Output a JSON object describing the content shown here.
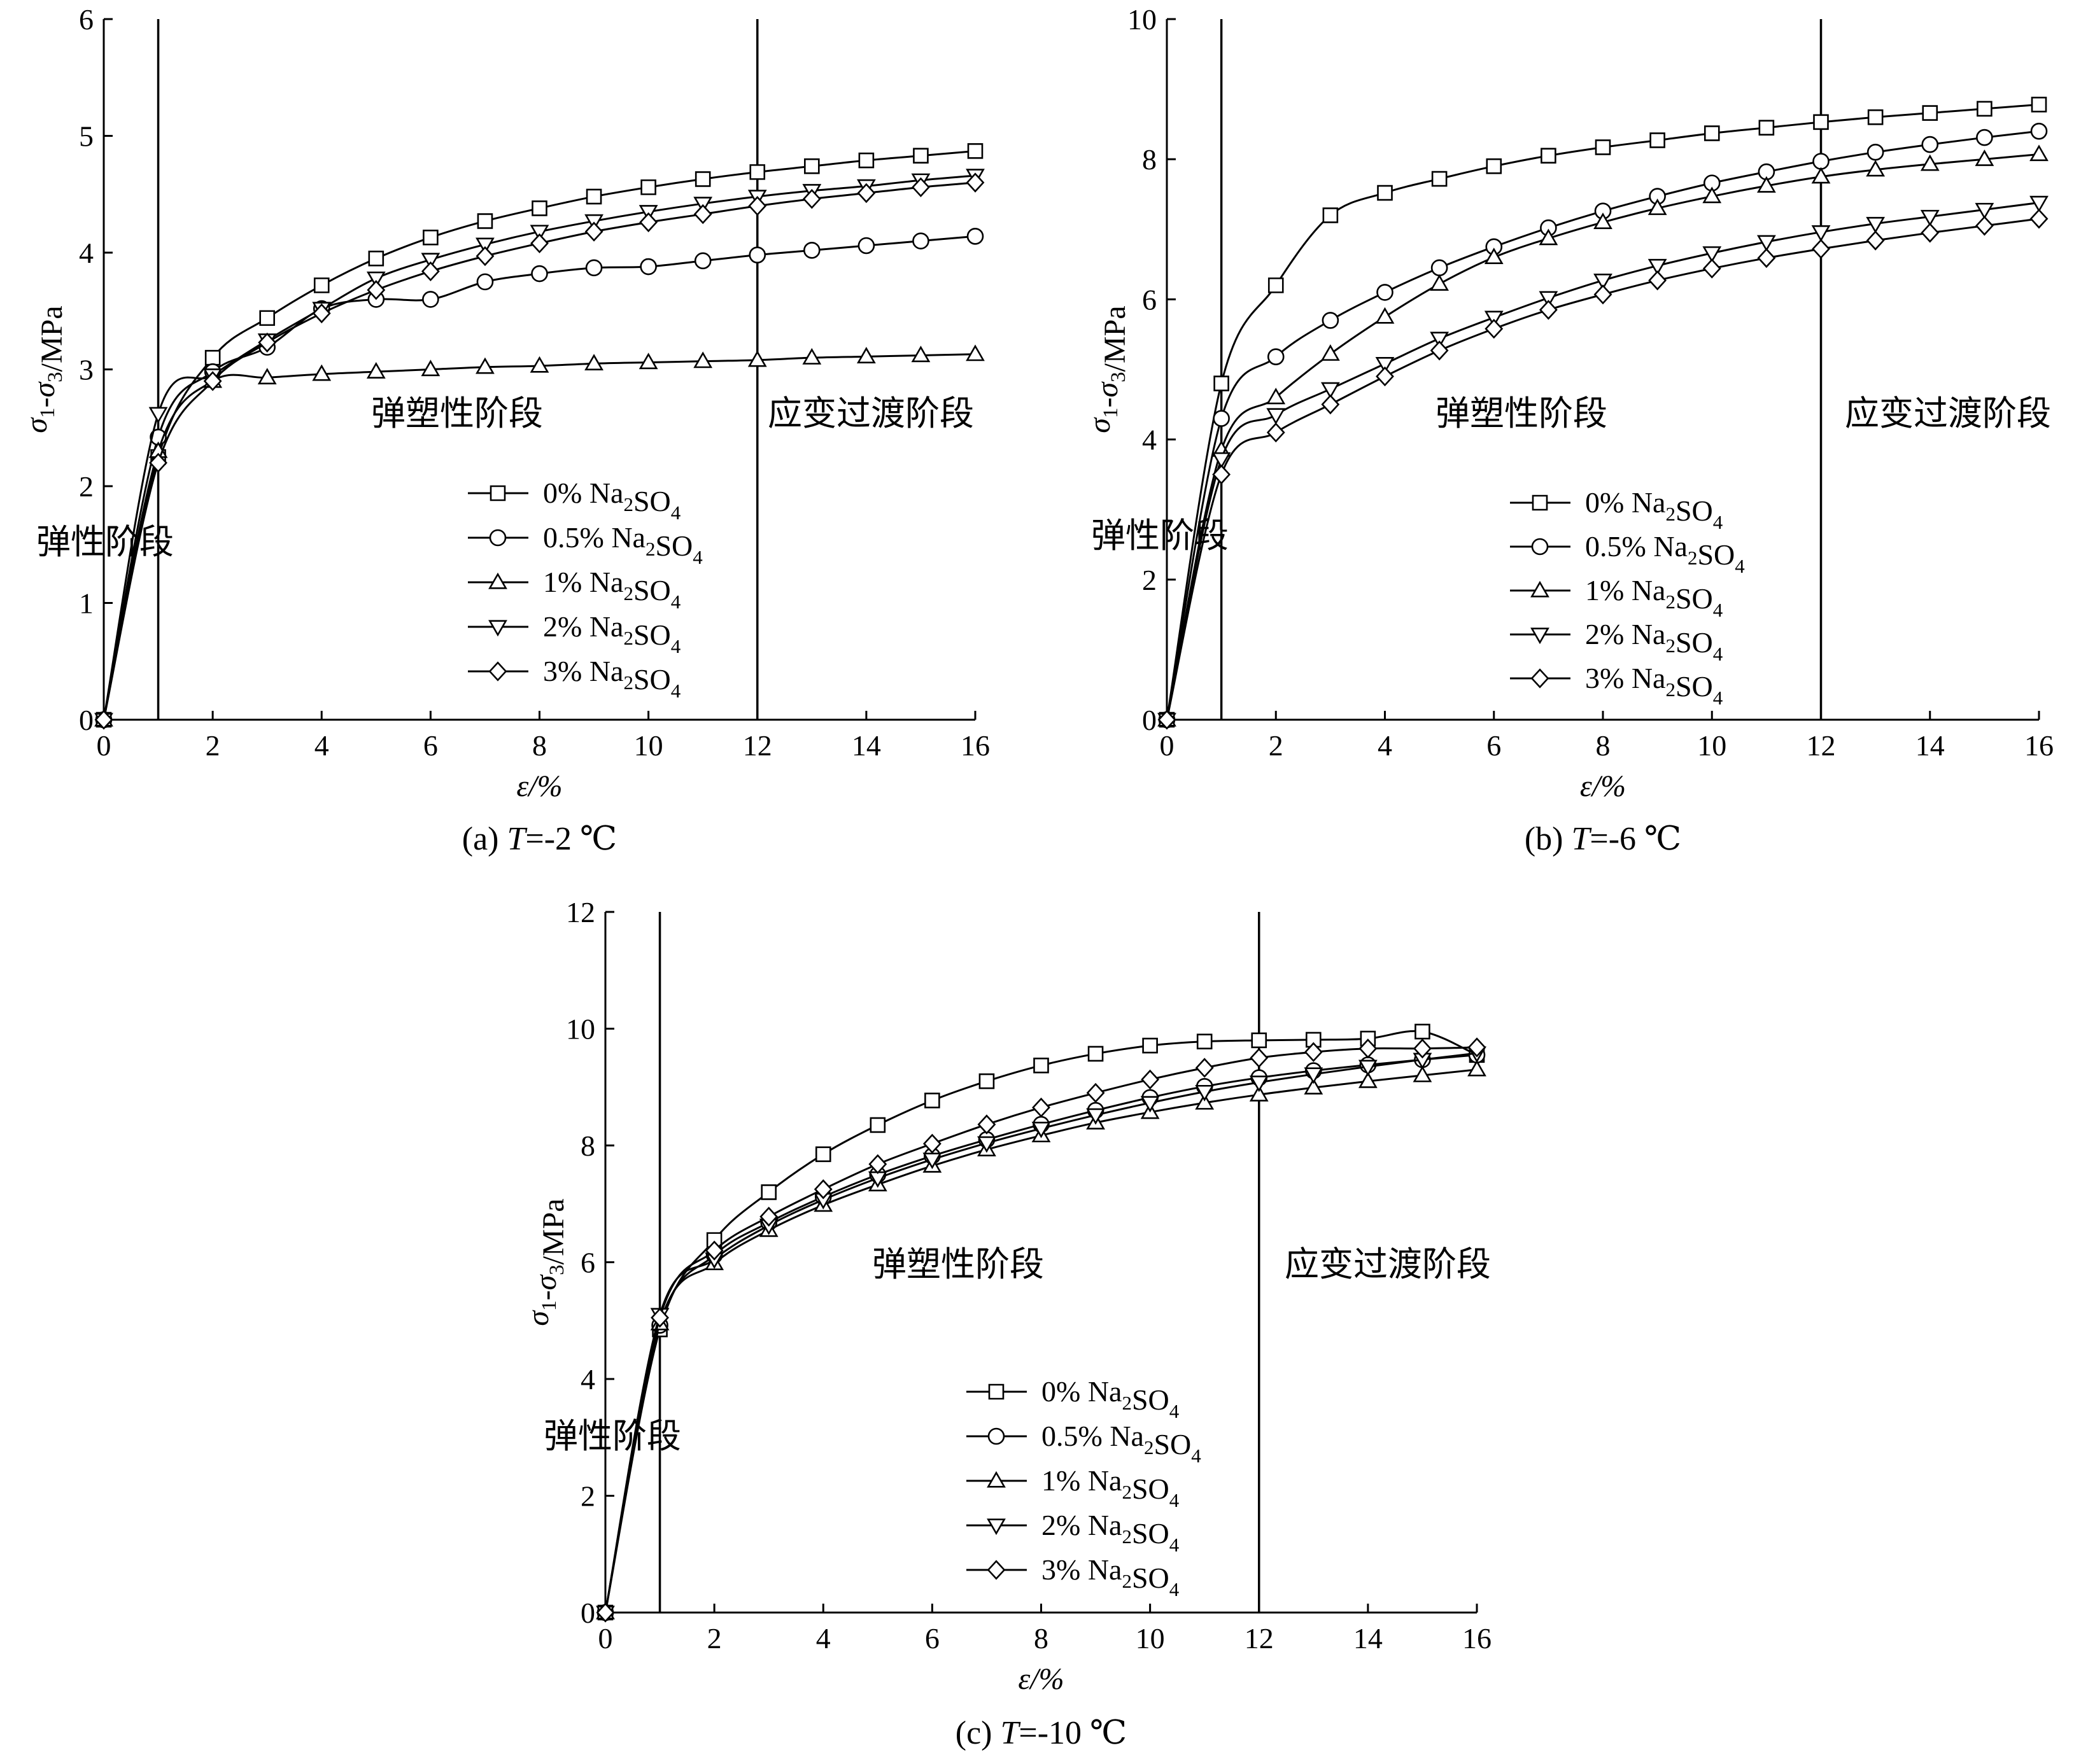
{
  "chart_data": [
    {
      "type": "line",
      "caption_prefix": "(a) ",
      "caption_var": "T",
      "caption_rest": "=-2 ℃",
      "xlabel": "ε/%",
      "ylabel": "σ1-σ3/MPa",
      "xlim": [
        0,
        16
      ],
      "ylim": [
        0,
        6
      ],
      "xticks": [
        0,
        2,
        4,
        6,
        8,
        10,
        12,
        14,
        16
      ],
      "yticks": [
        0,
        1,
        2,
        3,
        4,
        5,
        6
      ],
      "stage_lines": [
        1,
        12
      ],
      "stage_labels": {
        "elastic": "弹性阶段",
        "elastoplastic": "弹塑性阶段",
        "transition": "应变过渡阶段"
      },
      "legend_position": "center-right",
      "series": [
        {
          "name": "0% Na2SO4",
          "marker": "square",
          "x": [
            0,
            1,
            2,
            3,
            4,
            5,
            6,
            7,
            8,
            9,
            10,
            11,
            12,
            13,
            14,
            15,
            16
          ],
          "y": [
            0,
            2.25,
            3.1,
            3.44,
            3.72,
            3.95,
            4.13,
            4.27,
            4.38,
            4.48,
            4.56,
            4.63,
            4.69,
            4.74,
            4.79,
            4.83,
            4.87
          ]
        },
        {
          "name": "0.5% Na2SO4",
          "marker": "circle",
          "x": [
            0,
            1,
            2,
            3,
            4,
            5,
            6,
            7,
            8,
            9,
            10,
            11,
            12,
            13,
            14,
            15,
            16
          ],
          "y": [
            0,
            2.42,
            2.98,
            3.19,
            3.52,
            3.6,
            3.6,
            3.75,
            3.82,
            3.87,
            3.88,
            3.93,
            3.98,
            4.02,
            4.06,
            4.1,
            4.14
          ]
        },
        {
          "name": "1% Na2SO4",
          "marker": "triangle-up",
          "x": [
            0,
            1,
            2,
            3,
            4,
            5,
            6,
            7,
            8,
            9,
            10,
            11,
            12,
            13,
            14,
            15,
            16
          ],
          "y": [
            0,
            2.3,
            2.9,
            2.93,
            2.96,
            2.98,
            3.0,
            3.02,
            3.03,
            3.05,
            3.06,
            3.07,
            3.08,
            3.1,
            3.11,
            3.12,
            3.13
          ]
        },
        {
          "name": "2% Na2SO4",
          "marker": "triangle-down",
          "x": [
            0,
            1,
            2,
            3,
            4,
            5,
            6,
            7,
            8,
            9,
            10,
            11,
            12,
            13,
            14,
            15,
            16
          ],
          "y": [
            0,
            2.62,
            2.95,
            3.25,
            3.52,
            3.78,
            3.94,
            4.07,
            4.18,
            4.27,
            4.35,
            4.42,
            4.48,
            4.53,
            4.57,
            4.62,
            4.66
          ]
        },
        {
          "name": "3% Na2SO4",
          "marker": "diamond",
          "x": [
            0,
            1,
            2,
            3,
            4,
            5,
            6,
            7,
            8,
            9,
            10,
            11,
            12,
            13,
            14,
            15,
            16
          ],
          "y": [
            0,
            2.2,
            2.9,
            3.23,
            3.48,
            3.68,
            3.84,
            3.97,
            4.08,
            4.18,
            4.26,
            4.33,
            4.4,
            4.46,
            4.51,
            4.56,
            4.6
          ]
        }
      ]
    },
    {
      "type": "line",
      "caption_prefix": "(b) ",
      "caption_var": "T",
      "caption_rest": "=-6 ℃",
      "xlabel": "ε/%",
      "ylabel": "σ1-σ3/MPa",
      "xlim": [
        0,
        16
      ],
      "ylim": [
        0,
        10
      ],
      "xticks": [
        0,
        2,
        4,
        6,
        8,
        10,
        12,
        14,
        16
      ],
      "yticks": [
        0,
        2,
        4,
        6,
        8,
        10
      ],
      "stage_lines": [
        1,
        12
      ],
      "stage_labels": {
        "elastic": "弹性阶段",
        "elastoplastic": "弹塑性阶段",
        "transition": "应变过渡阶段"
      },
      "legend_position": "center-right",
      "series": [
        {
          "name": "0% Na2SO4",
          "marker": "square",
          "x": [
            0,
            1,
            2,
            3,
            4,
            5,
            6,
            7,
            8,
            9,
            10,
            11,
            12,
            13,
            14,
            15,
            16
          ],
          "y": [
            0,
            4.8,
            6.2,
            7.2,
            7.52,
            7.72,
            7.9,
            8.05,
            8.17,
            8.27,
            8.37,
            8.45,
            8.53,
            8.6,
            8.66,
            8.72,
            8.78
          ]
        },
        {
          "name": "0.5% Na2SO4",
          "marker": "circle",
          "x": [
            0,
            1,
            2,
            3,
            4,
            5,
            6,
            7,
            8,
            9,
            10,
            11,
            12,
            13,
            14,
            15,
            16
          ],
          "y": [
            0,
            4.3,
            5.18,
            5.7,
            6.1,
            6.45,
            6.75,
            7.02,
            7.26,
            7.47,
            7.66,
            7.82,
            7.97,
            8.1,
            8.21,
            8.31,
            8.4
          ]
        },
        {
          "name": "1% Na2SO4",
          "marker": "triangle-up",
          "x": [
            0,
            1,
            2,
            3,
            4,
            5,
            6,
            7,
            8,
            9,
            10,
            11,
            12,
            13,
            14,
            15,
            16
          ],
          "y": [
            0,
            3.85,
            4.6,
            5.22,
            5.75,
            6.22,
            6.6,
            6.87,
            7.1,
            7.3,
            7.47,
            7.62,
            7.75,
            7.85,
            7.93,
            8.0,
            8.07
          ]
        },
        {
          "name": "2% Na2SO4",
          "marker": "triangle-down",
          "x": [
            0,
            1,
            2,
            3,
            4,
            5,
            6,
            7,
            8,
            9,
            10,
            11,
            12,
            13,
            14,
            15,
            16
          ],
          "y": [
            0,
            3.72,
            4.35,
            4.72,
            5.08,
            5.44,
            5.74,
            6.02,
            6.27,
            6.48,
            6.66,
            6.82,
            6.96,
            7.08,
            7.18,
            7.28,
            7.38
          ]
        },
        {
          "name": "3% Na2SO4",
          "marker": "diamond",
          "x": [
            0,
            1,
            2,
            3,
            4,
            5,
            6,
            7,
            8,
            9,
            10,
            11,
            12,
            13,
            14,
            15,
            16
          ],
          "y": [
            0,
            3.5,
            4.1,
            4.5,
            4.9,
            5.27,
            5.58,
            5.85,
            6.07,
            6.27,
            6.44,
            6.59,
            6.72,
            6.84,
            6.95,
            7.05,
            7.15
          ]
        }
      ]
    },
    {
      "type": "line",
      "caption_prefix": "(c) ",
      "caption_var": "T",
      "caption_rest": "=-10 ℃",
      "xlabel": "ε/%",
      "ylabel": "σ1-σ3/MPa",
      "xlim": [
        0,
        16
      ],
      "ylim": [
        0,
        12
      ],
      "xticks": [
        0,
        2,
        4,
        6,
        8,
        10,
        12,
        14,
        16
      ],
      "yticks": [
        0,
        2,
        4,
        6,
        8,
        10,
        12
      ],
      "stage_lines": [
        1,
        12
      ],
      "stage_labels": {
        "elastic": "弹性阶段",
        "elastoplastic": "弹塑性阶段",
        "transition": "应变过渡阶段"
      },
      "legend_position": "bottom-center",
      "series": [
        {
          "name": "0% Na2SO4",
          "marker": "square",
          "x": [
            0,
            1,
            2,
            3,
            4,
            5,
            6,
            7,
            8,
            9,
            10,
            11,
            12,
            13,
            14,
            15,
            16
          ],
          "y": [
            0,
            4.85,
            6.38,
            7.2,
            7.85,
            8.35,
            8.77,
            9.1,
            9.37,
            9.57,
            9.71,
            9.78,
            9.8,
            9.81,
            9.83,
            9.95,
            9.55
          ]
        },
        {
          "name": "0.5% Na2SO4",
          "marker": "circle",
          "x": [
            0,
            1,
            2,
            3,
            4,
            5,
            6,
            7,
            8,
            9,
            10,
            11,
            12,
            13,
            14,
            15,
            16
          ],
          "y": [
            0,
            4.92,
            6.12,
            6.68,
            7.12,
            7.5,
            7.82,
            8.1,
            8.36,
            8.6,
            8.82,
            9.01,
            9.16,
            9.28,
            9.38,
            9.47,
            9.55
          ]
        },
        {
          "name": "1% Na2SO4",
          "marker": "triangle-up",
          "x": [
            0,
            1,
            2,
            3,
            4,
            5,
            6,
            7,
            8,
            9,
            10,
            11,
            12,
            13,
            14,
            15,
            16
          ],
          "y": [
            0,
            4.95,
            5.98,
            6.55,
            6.98,
            7.33,
            7.65,
            7.93,
            8.17,
            8.39,
            8.57,
            8.73,
            8.87,
            8.99,
            9.1,
            9.2,
            9.3
          ]
        },
        {
          "name": "2% Na2SO4",
          "marker": "triangle-down",
          "x": [
            0,
            1,
            2,
            3,
            4,
            5,
            6,
            7,
            8,
            9,
            10,
            11,
            12,
            13,
            14,
            15,
            16
          ],
          "y": [
            0,
            5.1,
            6.05,
            6.63,
            7.07,
            7.44,
            7.76,
            8.04,
            8.29,
            8.52,
            8.73,
            8.92,
            9.08,
            9.22,
            9.35,
            9.47,
            9.58
          ]
        },
        {
          "name": "3% Na2SO4",
          "marker": "diamond",
          "x": [
            0,
            1,
            2,
            3,
            4,
            5,
            6,
            7,
            8,
            9,
            10,
            11,
            12,
            13,
            14,
            15,
            16
          ],
          "y": [
            0,
            5.05,
            6.2,
            6.78,
            7.25,
            7.68,
            8.03,
            8.36,
            8.65,
            8.9,
            9.13,
            9.33,
            9.5,
            9.6,
            9.66,
            9.66,
            9.68
          ]
        }
      ]
    }
  ]
}
